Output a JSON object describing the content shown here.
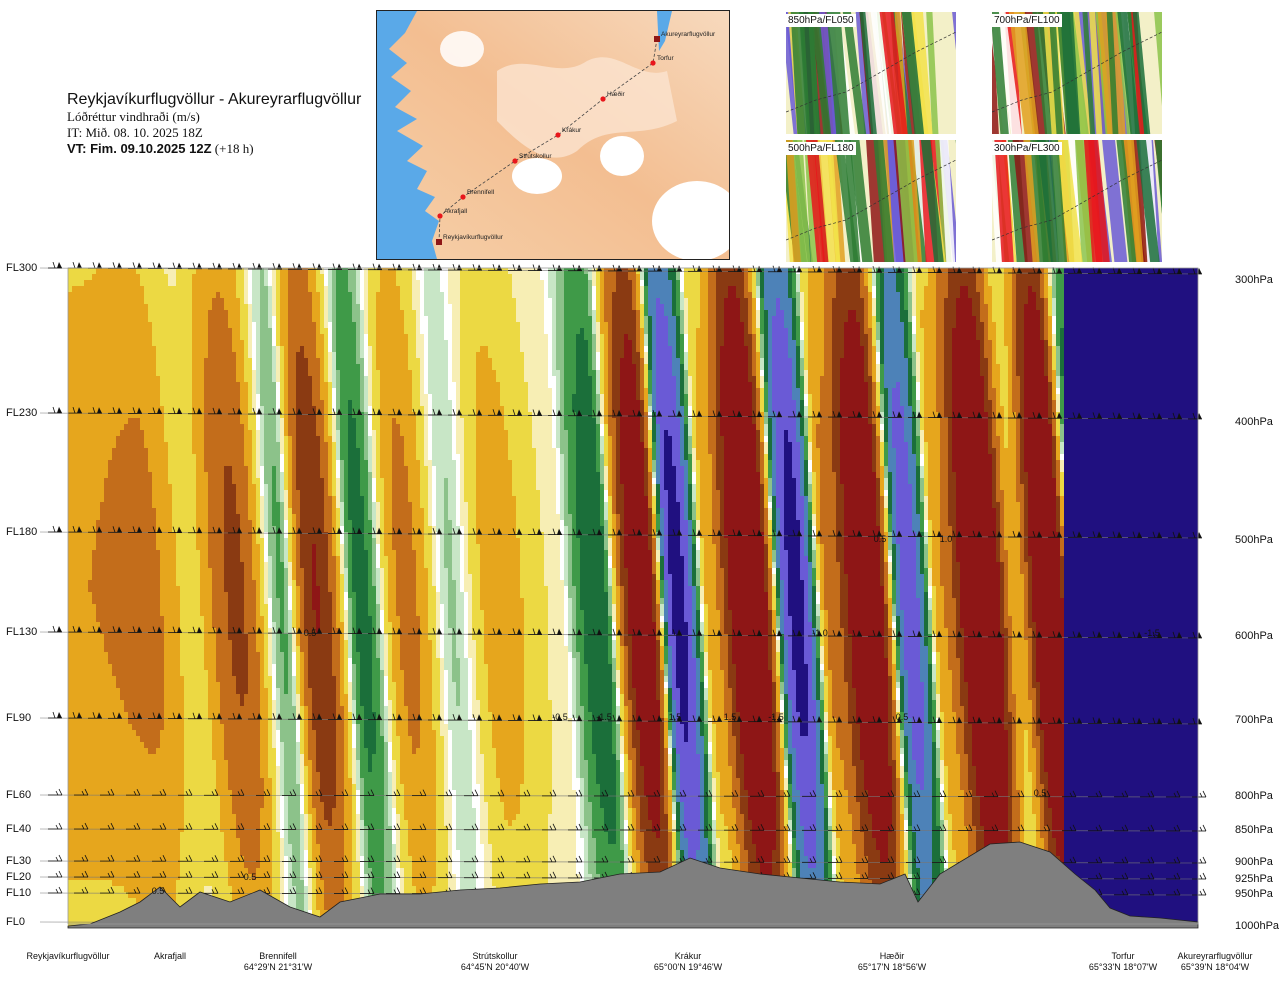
{
  "header": {
    "title": "Reykjavíkurflugvöllur - Akureyrarflugvöllur",
    "subtitle": "Lóðréttur vindhraði (m/s)",
    "init_time": "IT: Mið. 08. 10. 2025 18Z",
    "valid_label": "VT: Fim. 09.10.2025 12Z",
    "valid_suffix": "(+18 h)"
  },
  "route_map": {
    "points": [
      "Akureyrarflugvöllur",
      "Torfur",
      "Hæðir",
      "Krákur",
      "Strútskollur",
      "Brennifell",
      "Akrafjall",
      "Reykjavíkurflugvöllur"
    ],
    "colors": {
      "sea": "#5aa9e8",
      "land_low": "#f4c79e",
      "land_high": "#fbe6d2",
      "ice": "#ffffff",
      "route": "#444444",
      "point": "#e8161b"
    }
  },
  "mini_maps": [
    {
      "label": "850hPa/FL050"
    },
    {
      "label": "700hPa/FL100"
    },
    {
      "label": "500hPa/FL180"
    },
    {
      "label": "300hPa/FL300"
    }
  ],
  "chart_data": {
    "type": "heatmap",
    "title": "Lóðréttur vindhraði (m/s)",
    "x_axis": "distance along route (Reykjavíkurflugvöllur → Akureyrarflugvöllur)",
    "flight_levels": [
      "FL300",
      "FL230",
      "FL180",
      "FL130",
      "FL90",
      "FL60",
      "FL40",
      "FL30",
      "FL20",
      "FL10",
      "FL0"
    ],
    "pressure_levels": [
      "300hPa",
      "400hPa",
      "500hPa",
      "600hPa",
      "700hPa",
      "800hPa",
      "850hPa",
      "900hPa",
      "925hPa",
      "950hPa",
      "1000hPa"
    ],
    "stations": [
      {
        "name": "Reykjavíkurflugvöllur",
        "coord": ""
      },
      {
        "name": "Akrafjall",
        "coord": ""
      },
      {
        "name": "Brennifell",
        "coord": "64°29'N 21°31'W"
      },
      {
        "name": "Strútskollur",
        "coord": "64°45'N 20°40'W"
      },
      {
        "name": "Krákur",
        "coord": "65°00'N 19°46'W"
      },
      {
        "name": "Hæðir",
        "coord": "65°17'N 18°56'W"
      },
      {
        "name": "Torfur",
        "coord": "65°33'N 18°07'W"
      },
      {
        "name": "Akureyrarflugvöllur",
        "coord": "65°39'N 18°04'W"
      }
    ],
    "bands": [
      {
        "x": 0.0,
        "v": 0.5
      },
      {
        "x": 0.05,
        "v": 0.6
      },
      {
        "x": 0.09,
        "v": 0.2
      },
      {
        "x": 0.13,
        "v": 0.9
      },
      {
        "x": 0.17,
        "v": -0.2
      },
      {
        "x": 0.2,
        "v": 1.2
      },
      {
        "x": 0.24,
        "v": -0.4
      },
      {
        "x": 0.28,
        "v": 0.6
      },
      {
        "x": 0.32,
        "v": -0.1
      },
      {
        "x": 0.36,
        "v": 0.4
      },
      {
        "x": 0.41,
        "v": 0.1
      },
      {
        "x": 0.45,
        "v": -0.5
      },
      {
        "x": 0.49,
        "v": 1.8
      },
      {
        "x": 0.52,
        "v": -1.6
      },
      {
        "x": 0.55,
        "v": 0.4
      },
      {
        "x": 0.585,
        "v": 2.2
      },
      {
        "x": 0.625,
        "v": -1.6
      },
      {
        "x": 0.655,
        "v": 0.6
      },
      {
        "x": 0.69,
        "v": 2.0
      },
      {
        "x": 0.725,
        "v": -1.2
      },
      {
        "x": 0.755,
        "v": 0.5
      },
      {
        "x": 0.79,
        "v": 2.2
      },
      {
        "x": 0.82,
        "v": 0.3
      },
      {
        "x": 0.85,
        "v": 2.2
      },
      {
        "x": 0.875,
        "v": -0.5
      },
      {
        "x": 0.905,
        "v": -1.6
      },
      {
        "x": 0.95,
        "v": -2.0
      },
      {
        "x": 1.0,
        "v": -1.4
      }
    ],
    "value_labels": [
      "0.5",
      "0.5",
      "0.5",
      "-0.5",
      "-1.5",
      "1.5",
      "1.5",
      "-1.5",
      "0.5",
      "0.5",
      "-1.0",
      "1.0",
      "0.5",
      "-1.5"
    ],
    "color_scale": [
      {
        "min": -99,
        "color": "#201080"
      },
      {
        "min": -1.5,
        "color": "#6a5ad6"
      },
      {
        "min": -1.0,
        "color": "#4d82b8"
      },
      {
        "min": -0.6,
        "color": "#1b6f3a"
      },
      {
        "min": -0.35,
        "color": "#3f9a48"
      },
      {
        "min": -0.2,
        "color": "#8cc28a"
      },
      {
        "min": -0.1,
        "color": "#c8e6c6"
      },
      {
        "min": -0.03,
        "color": "#ffffff"
      },
      {
        "min": 0.03,
        "color": "#f7eeb4"
      },
      {
        "min": 0.12,
        "color": "#ecd943"
      },
      {
        "min": 0.3,
        "color": "#e6a61d"
      },
      {
        "min": 0.55,
        "color": "#c36d1b"
      },
      {
        "min": 0.9,
        "color": "#8a3a12"
      },
      {
        "min": 1.3,
        "color": "#8e1616"
      }
    ],
    "terrain_color": "#7f7f7f"
  }
}
